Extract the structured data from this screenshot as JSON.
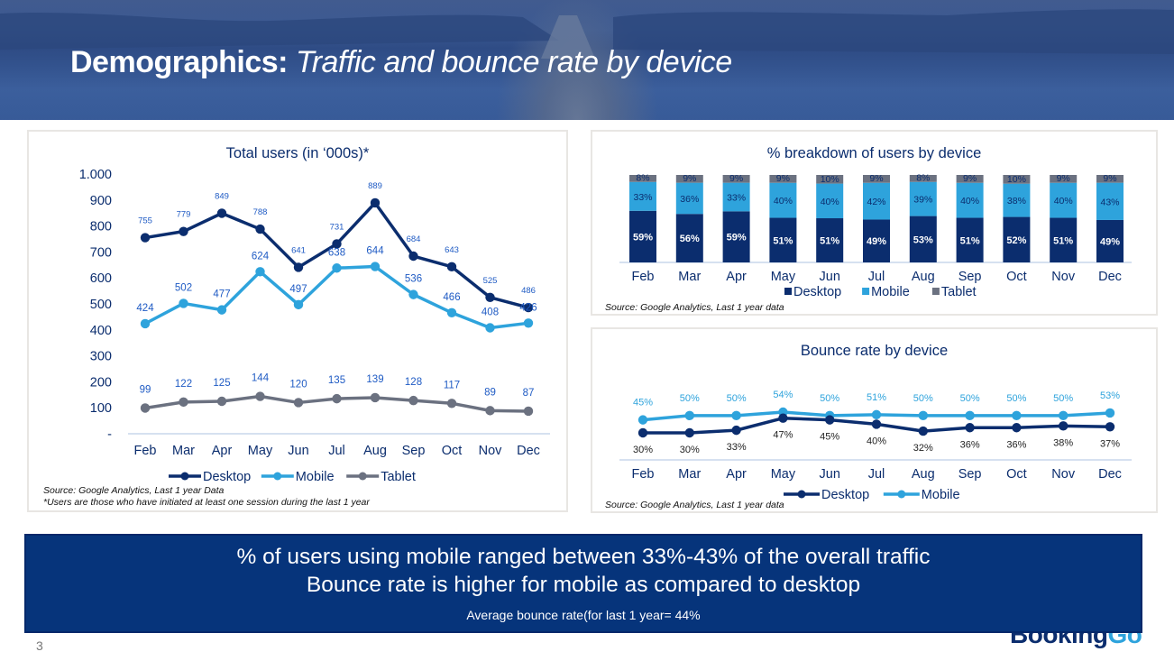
{
  "slide": {
    "title_bold": "Demographics:",
    "title_italic": "Traffic and bounce rate by device",
    "page_number": "3",
    "logo": {
      "text_main": "Booking",
      "text_accent": "Go"
    }
  },
  "colors": {
    "desktop": "#0b2d6e",
    "mobile": "#2ea3dc",
    "tablet": "#6b7180",
    "label_blue": "#1f5bc4",
    "axis_text": "#0b2d6e",
    "banner_bg": "#06347b"
  },
  "banner": {
    "line1": "% of users using mobile ranged between 33%-43% of the overall traffic",
    "line2": "Bounce rate is higher for mobile as compared to desktop",
    "line3": "Average bounce rate(for last 1 year= 44%"
  },
  "chart_data": [
    {
      "id": "total-users",
      "type": "line",
      "title": "Total users (in ‘000s)*",
      "xlabel": "",
      "ylabel": "",
      "categories": [
        "Feb",
        "Mar",
        "Apr",
        "May",
        "Jun",
        "Jul",
        "Aug",
        "Sep",
        "Oct",
        "Nov",
        "Dec"
      ],
      "ylim": [
        0,
        1000
      ],
      "yticks": [
        0,
        100,
        200,
        300,
        400,
        500,
        600,
        700,
        800,
        900,
        1000
      ],
      "ytick_labels": [
        "-",
        "100",
        "200",
        "300",
        "400",
        "500",
        "600",
        "700",
        "800",
        "900",
        "1.000"
      ],
      "grid": false,
      "legend": "bottom",
      "series": [
        {
          "name": "Desktop",
          "values": [
            755,
            779,
            849,
            788,
            641,
            731,
            889,
            684,
            643,
            525,
            486
          ]
        },
        {
          "name": "Mobile",
          "values": [
            424,
            502,
            477,
            624,
            497,
            638,
            644,
            536,
            466,
            408,
            426
          ]
        },
        {
          "name": "Tablet",
          "values": [
            99,
            122,
            125,
            144,
            120,
            135,
            139,
            128,
            117,
            89,
            87
          ]
        }
      ],
      "source": "Source: Google Analytics, Last 1 year Data",
      "footnote": "*Users are those who have initiated at least one session during the last 1 year"
    },
    {
      "id": "breakdown",
      "type": "bar",
      "stacked": true,
      "title": "% breakdown of users by device",
      "xlabel": "",
      "ylabel": "",
      "categories": [
        "Feb",
        "Mar",
        "Apr",
        "May",
        "Jun",
        "Jul",
        "Aug",
        "Sep",
        "Oct",
        "Nov",
        "Dec"
      ],
      "ylim": [
        0,
        100
      ],
      "grid": false,
      "legend": "bottom",
      "series": [
        {
          "name": "Desktop",
          "values": [
            59,
            56,
            59,
            51,
            51,
            49,
            53,
            51,
            52,
            51,
            49
          ]
        },
        {
          "name": "Mobile",
          "values": [
            33,
            36,
            33,
            40,
            40,
            42,
            39,
            40,
            38,
            40,
            43
          ]
        },
        {
          "name": "Tablet",
          "values": [
            8,
            9,
            9,
            9,
            10,
            9,
            8,
            9,
            10,
            9,
            9
          ]
        }
      ],
      "source": "Source: Google Analytics, Last 1 year data"
    },
    {
      "id": "bounce",
      "type": "line",
      "title": "Bounce rate by device",
      "xlabel": "",
      "ylabel": "",
      "categories": [
        "Feb",
        "Mar",
        "Apr",
        "May",
        "Jun",
        "Jul",
        "Aug",
        "Sep",
        "Oct",
        "Nov",
        "Dec"
      ],
      "ylim": [
        0,
        60
      ],
      "grid": false,
      "legend": "bottom",
      "series": [
        {
          "name": "Desktop",
          "values": [
            30,
            30,
            33,
            47,
            45,
            40,
            32,
            36,
            36,
            38,
            37
          ]
        },
        {
          "name": "Mobile",
          "values": [
            45,
            50,
            50,
            54,
            50,
            51,
            50,
            50,
            50,
            50,
            53
          ]
        }
      ],
      "source": "Source: Google Analytics, Last 1 year data"
    }
  ]
}
